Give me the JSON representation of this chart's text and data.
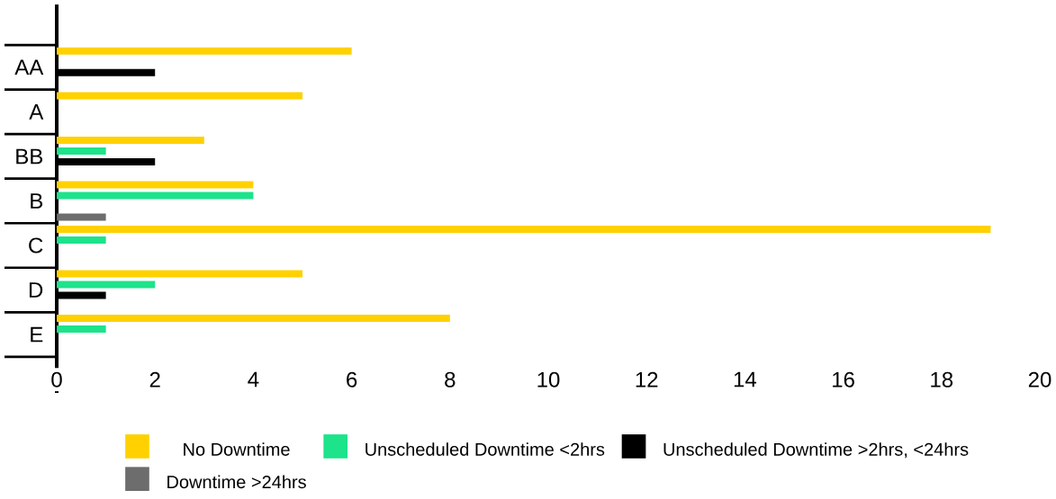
{
  "chart_data": {
    "type": "bar",
    "orientation": "horizontal",
    "categories": [
      "AA",
      "A",
      "BB",
      "B",
      "C",
      "D",
      "E"
    ],
    "series": [
      {
        "name": "No Downtime",
        "color": "#ffd100",
        "values": [
          6,
          5,
          3,
          4,
          19,
          5,
          8
        ]
      },
      {
        "name": "Unscheduled Downtime <2hrs",
        "color": "#1de38a",
        "values": [
          null,
          null,
          1,
          4,
          1,
          2,
          1
        ]
      },
      {
        "name": "Unscheduled Downtime >2hrs, <24hrs",
        "color": "#000000",
        "values": [
          2,
          null,
          2,
          null,
          null,
          1,
          null
        ]
      },
      {
        "name": "Downtime >24hrs",
        "color": "#6d6d6d",
        "values": [
          null,
          null,
          null,
          1,
          null,
          null,
          null
        ]
      }
    ],
    "xlim": [
      0,
      20
    ],
    "xticks": [
      0,
      2,
      4,
      6,
      8,
      10,
      12,
      14,
      16,
      18,
      20
    ],
    "grid": false,
    "legend": "bottom"
  }
}
